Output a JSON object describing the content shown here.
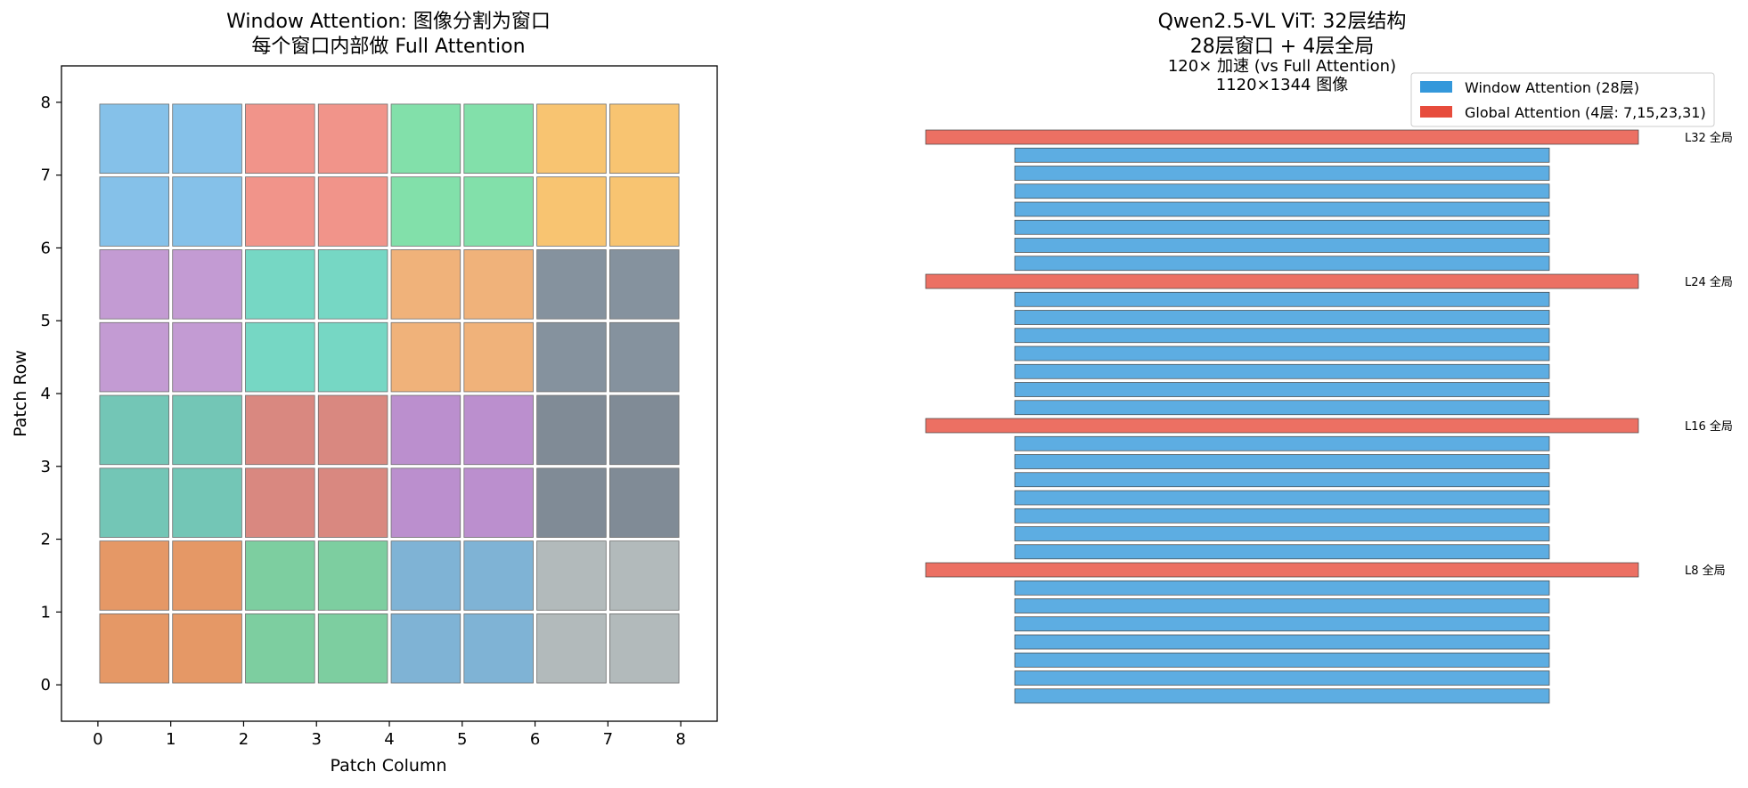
{
  "chart_data": [
    {
      "type": "heatmap",
      "title": "Window Attention: 图像分割为窗口",
      "subtitle": "每个窗口内部做 Full Attention",
      "xlabel": "Patch Column",
      "ylabel": "Patch Row",
      "xlim": [
        -0.5,
        8.5
      ],
      "ylim": [
        -0.5,
        8.5
      ],
      "x_ticks": [
        "0",
        "1",
        "2",
        "3",
        "4",
        "5",
        "6",
        "7",
        "8"
      ],
      "y_ticks": [
        "0",
        "1",
        "2",
        "3",
        "4",
        "5",
        "6",
        "7",
        "8"
      ],
      "grid": false,
      "windows": [
        {
          "col": 0,
          "row": 6,
          "color": "#85c1e9"
        },
        {
          "col": 2,
          "row": 6,
          "color": "#f1948a"
        },
        {
          "col": 4,
          "row": 6,
          "color": "#82e0aa"
        },
        {
          "col": 6,
          "row": 6,
          "color": "#f8c471"
        },
        {
          "col": 0,
          "row": 4,
          "color": "#c39bd3"
        },
        {
          "col": 2,
          "row": 4,
          "color": "#76d7c4"
        },
        {
          "col": 4,
          "row": 4,
          "color": "#f0b27a"
        },
        {
          "col": 6,
          "row": 4,
          "color": "#85929e"
        },
        {
          "col": 0,
          "row": 2,
          "color": "#73c6b6"
        },
        {
          "col": 2,
          "row": 2,
          "color": "#d98880"
        },
        {
          "col": 4,
          "row": 2,
          "color": "#bb8fce"
        },
        {
          "col": 6,
          "row": 2,
          "color": "#808b96"
        },
        {
          "col": 0,
          "row": 0,
          "color": "#e59866"
        },
        {
          "col": 2,
          "row": 0,
          "color": "#7dcea0"
        },
        {
          "col": 4,
          "row": 0,
          "color": "#7fb3d5"
        },
        {
          "col": 6,
          "row": 0,
          "color": "#b2babb"
        }
      ],
      "window_size": 2
    },
    {
      "type": "bar",
      "title": "Qwen2.5-VL ViT: 32层结构",
      "subtitle": "28层窗口 + 4层全局",
      "annotations": [
        "120× 加速 (vs Full Attention)",
        "1120×1344 图像"
      ],
      "annotation_color": "#e74c3c",
      "layers_total": 32,
      "global_layers": [
        7,
        15,
        23,
        31
      ],
      "layer_labels": [
        {
          "layer": 31,
          "text": "L32 全局"
        },
        {
          "layer": 23,
          "text": "L24 全局"
        },
        {
          "layer": 15,
          "text": "L16 全局"
        },
        {
          "layer": 7,
          "text": "L8 全局"
        }
      ],
      "series": [
        {
          "name": "Window Attention (28层)",
          "color": "#5dade2",
          "legend_color": "#3498db",
          "width": 0.6
        },
        {
          "name": "Global Attention (4层: 7,15,23,31)",
          "color": "#ec7063",
          "legend_color": "#e74c3c",
          "width": 0.8
        }
      ],
      "legend_position": "top-right"
    }
  ]
}
